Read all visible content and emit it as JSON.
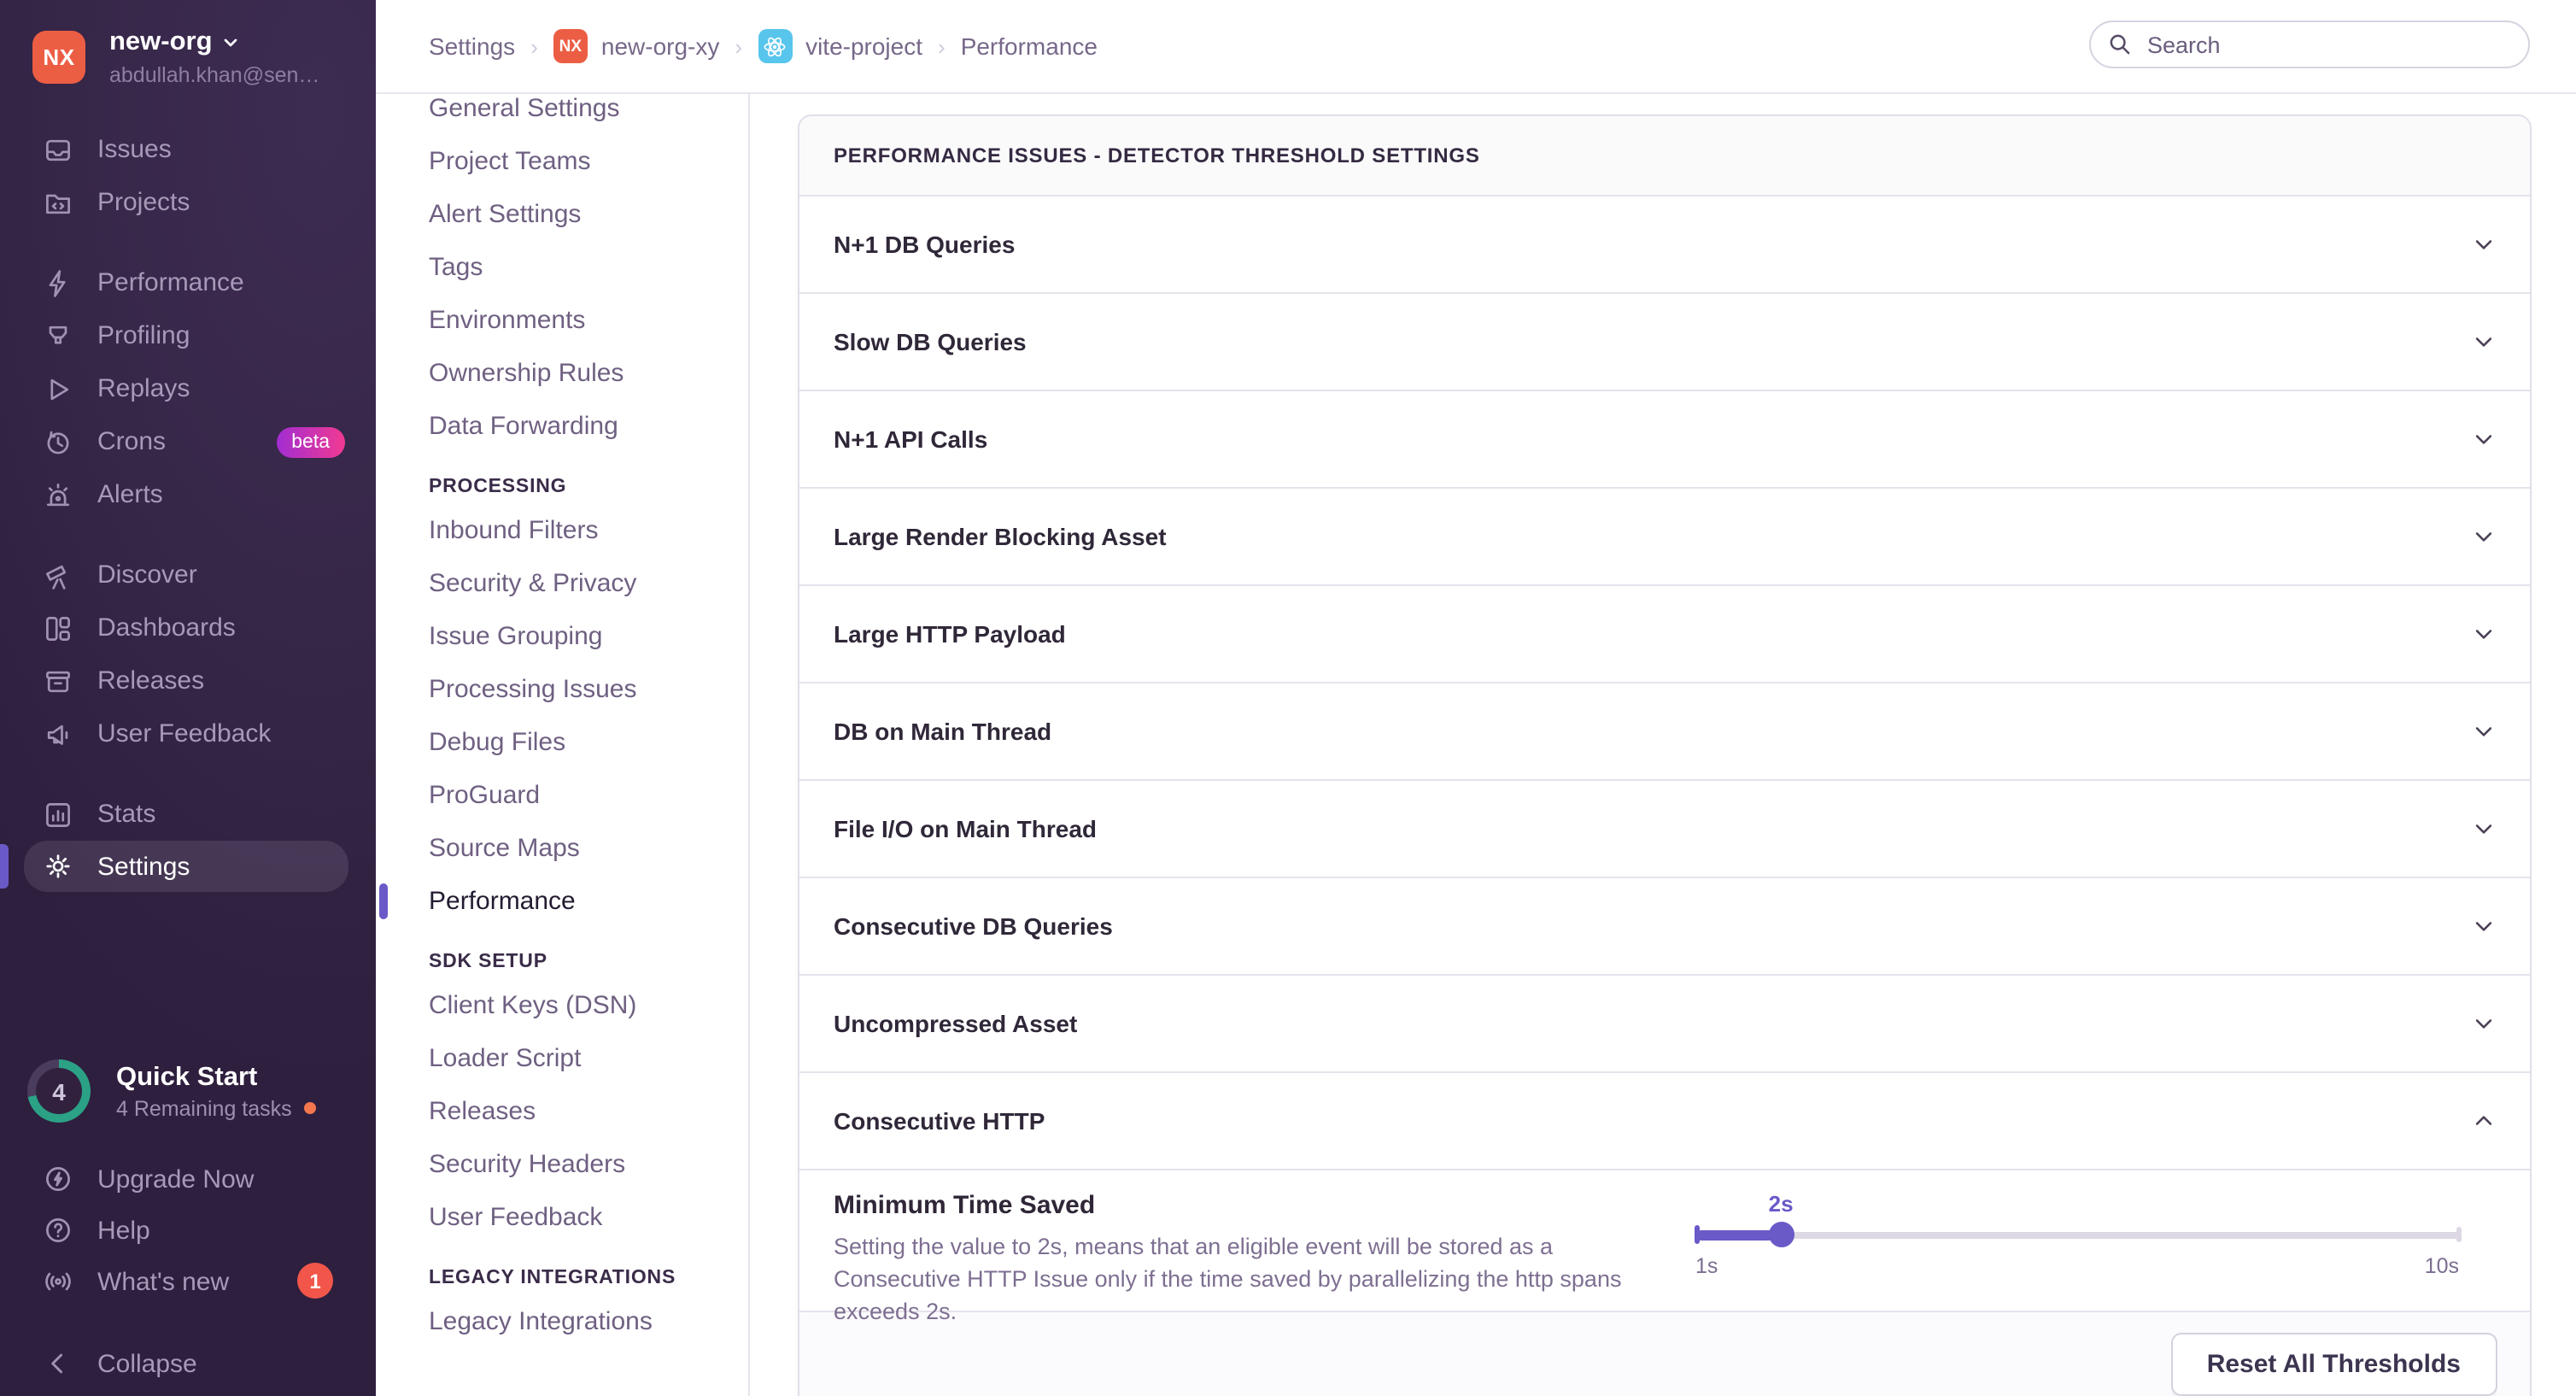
{
  "colors": {
    "accent": "#6a5ac8",
    "sidebar_bg": "#362648",
    "avatar_orange": "#ec5e44",
    "badge_red": "#f2564a",
    "quickstart_teal": "#2ba185",
    "react_blue": "#58c5ec"
  },
  "sidebar": {
    "org_name": "new-org",
    "org_initials": "NX",
    "user_email": "abdullah.khan@sen…",
    "items": [
      {
        "label": "Issues"
      },
      {
        "label": "Projects"
      },
      {
        "label": "Performance"
      },
      {
        "label": "Profiling"
      },
      {
        "label": "Replays"
      },
      {
        "label": "Crons",
        "badge": "beta"
      },
      {
        "label": "Alerts"
      },
      {
        "label": "Discover"
      },
      {
        "label": "Dashboards"
      },
      {
        "label": "Releases"
      },
      {
        "label": "User Feedback"
      },
      {
        "label": "Stats"
      },
      {
        "label": "Settings"
      }
    ],
    "quick_start": {
      "title": "Quick Start",
      "subtitle": "4 Remaining tasks",
      "count": "4"
    },
    "footer_items": [
      {
        "label": "Upgrade Now"
      },
      {
        "label": "Help"
      },
      {
        "label": "What's new",
        "badge": "1"
      },
      {
        "label": "Collapse"
      }
    ]
  },
  "topbar": {
    "breadcrumbs": {
      "settings": "Settings",
      "org_initials": "NX",
      "org": "new-org-xy",
      "project": "vite-project",
      "page": "Performance"
    },
    "search_placeholder": "Search"
  },
  "settings_nav": {
    "active_item": "Performance",
    "sections": [
      {
        "header": "",
        "items": [
          "General Settings",
          "Project Teams",
          "Alert Settings",
          "Tags",
          "Environments",
          "Ownership Rules",
          "Data Forwarding"
        ]
      },
      {
        "header": "PROCESSING",
        "items": [
          "Inbound Filters",
          "Security & Privacy",
          "Issue Grouping",
          "Processing Issues",
          "Debug Files",
          "ProGuard",
          "Source Maps",
          "Performance"
        ]
      },
      {
        "header": "SDK SETUP",
        "items": [
          "Client Keys (DSN)",
          "Loader Script",
          "Releases",
          "Security Headers",
          "User Feedback"
        ]
      },
      {
        "header": "LEGACY INTEGRATIONS",
        "items": [
          "Legacy Integrations"
        ]
      }
    ]
  },
  "panel": {
    "title": "PERFORMANCE ISSUES - DETECTOR THRESHOLD SETTINGS",
    "rows": [
      {
        "label": "N+1 DB Queries",
        "state": "collapsed"
      },
      {
        "label": "Slow DB Queries",
        "state": "collapsed"
      },
      {
        "label": "N+1 API Calls",
        "state": "collapsed"
      },
      {
        "label": "Large Render Blocking Asset",
        "state": "collapsed"
      },
      {
        "label": "Large HTTP Payload",
        "state": "collapsed"
      },
      {
        "label": "DB on Main Thread",
        "state": "collapsed"
      },
      {
        "label": "File I/O on Main Thread",
        "state": "collapsed"
      },
      {
        "label": "Consecutive DB Queries",
        "state": "collapsed"
      },
      {
        "label": "Uncompressed Asset",
        "state": "collapsed"
      },
      {
        "label": "Consecutive HTTP",
        "state": "expanded"
      }
    ],
    "expanded": {
      "setting_label": "Minimum Time Saved",
      "setting_description": "Setting the value to 2s, means that an eligible event will be stored as a Consecutive HTTP Issue only if the time saved by parallelizing the http spans exceeds 2s.",
      "slider": {
        "value_label": "2s",
        "min_label": "1s",
        "max_label": "10s",
        "percent": 11.2
      }
    },
    "footer_button": "Reset All Thresholds"
  }
}
